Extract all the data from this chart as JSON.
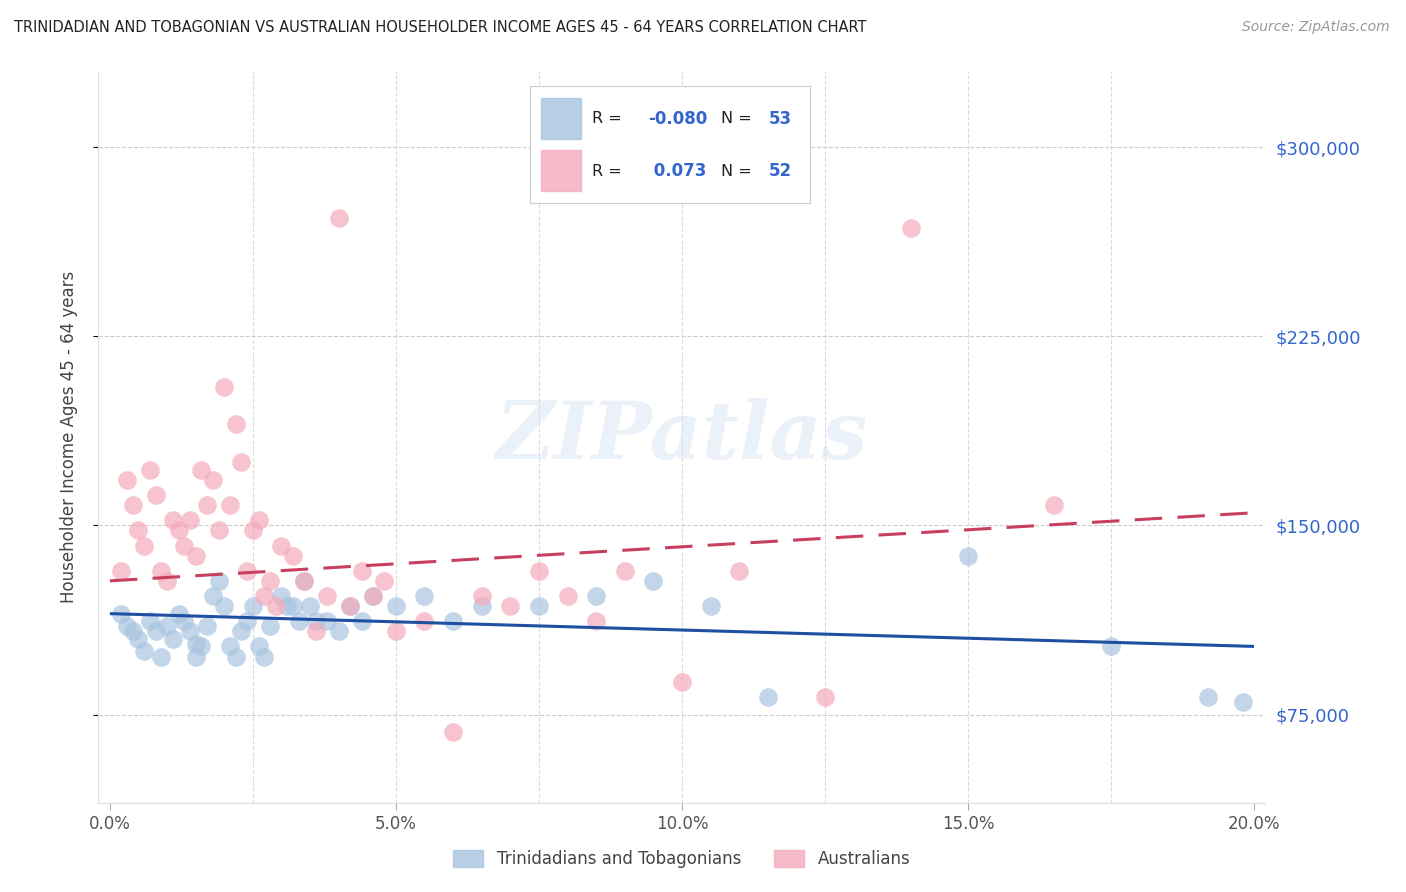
{
  "title": "TRINIDADIAN AND TOBAGONIAN VS AUSTRALIAN HOUSEHOLDER INCOME AGES 45 - 64 YEARS CORRELATION CHART",
  "source": "Source: ZipAtlas.com",
  "ylabel": "Householder Income Ages 45 - 64 years",
  "y_ticks": [
    75000,
    150000,
    225000,
    300000
  ],
  "y_tick_labels": [
    "$75,000",
    "$150,000",
    "$225,000",
    "$300,000"
  ],
  "x_min": 0.0,
  "x_max": 20.0,
  "y_min": 40000,
  "y_max": 330000,
  "blue_color": "#A8C4E0",
  "pink_color": "#F4AABB",
  "blue_line_color": "#1E4FA0",
  "pink_line_color": "#C84060",
  "watermark_color": "#C8D8F0",
  "label_color": "#3366CC",
  "watermark": "ZIPatlas",
  "legend_r_blue": "-0.080",
  "legend_n_blue": "53",
  "legend_r_pink": "0.073",
  "legend_n_pink": "52",
  "blue_scatter_x": [
    0.2,
    0.3,
    0.4,
    0.5,
    0.6,
    0.7,
    0.8,
    0.9,
    1.0,
    1.1,
    1.2,
    1.3,
    1.4,
    1.5,
    1.5,
    1.6,
    1.7,
    1.8,
    1.9,
    2.0,
    2.1,
    2.2,
    2.3,
    2.4,
    2.5,
    2.6,
    2.7,
    2.8,
    3.0,
    3.1,
    3.2,
    3.3,
    3.4,
    3.5,
    3.6,
    3.8,
    4.0,
    4.2,
    4.4,
    4.6,
    5.0,
    5.5,
    6.0,
    6.5,
    7.5,
    8.5,
    9.5,
    10.5,
    11.5,
    15.0,
    17.5,
    19.2,
    19.8
  ],
  "blue_scatter_y": [
    115000,
    110000,
    108000,
    105000,
    100000,
    112000,
    108000,
    98000,
    110000,
    105000,
    115000,
    112000,
    108000,
    98000,
    103000,
    102000,
    110000,
    122000,
    128000,
    118000,
    102000,
    98000,
    108000,
    112000,
    118000,
    102000,
    98000,
    110000,
    122000,
    118000,
    118000,
    112000,
    128000,
    118000,
    112000,
    112000,
    108000,
    118000,
    112000,
    122000,
    118000,
    122000,
    112000,
    118000,
    118000,
    122000,
    128000,
    118000,
    82000,
    138000,
    102000,
    82000,
    80000
  ],
  "pink_scatter_x": [
    0.2,
    0.3,
    0.4,
    0.5,
    0.6,
    0.7,
    0.8,
    0.9,
    1.0,
    1.1,
    1.2,
    1.3,
    1.4,
    1.5,
    1.6,
    1.7,
    1.8,
    1.9,
    2.0,
    2.1,
    2.2,
    2.3,
    2.4,
    2.5,
    2.6,
    2.7,
    2.8,
    2.9,
    3.0,
    3.2,
    3.4,
    3.6,
    3.8,
    4.0,
    4.2,
    4.4,
    4.6,
    4.8,
    5.0,
    5.5,
    6.0,
    6.5,
    7.0,
    7.5,
    8.0,
    8.5,
    9.0,
    10.0,
    11.0,
    12.5,
    14.0,
    16.5
  ],
  "pink_scatter_y": [
    132000,
    168000,
    158000,
    148000,
    142000,
    172000,
    162000,
    132000,
    128000,
    152000,
    148000,
    142000,
    152000,
    138000,
    172000,
    158000,
    168000,
    148000,
    205000,
    158000,
    190000,
    175000,
    132000,
    148000,
    152000,
    122000,
    128000,
    118000,
    142000,
    138000,
    128000,
    108000,
    122000,
    272000,
    118000,
    132000,
    122000,
    128000,
    108000,
    112000,
    68000,
    122000,
    118000,
    132000,
    122000,
    112000,
    132000,
    88000,
    132000,
    82000,
    268000,
    158000
  ]
}
